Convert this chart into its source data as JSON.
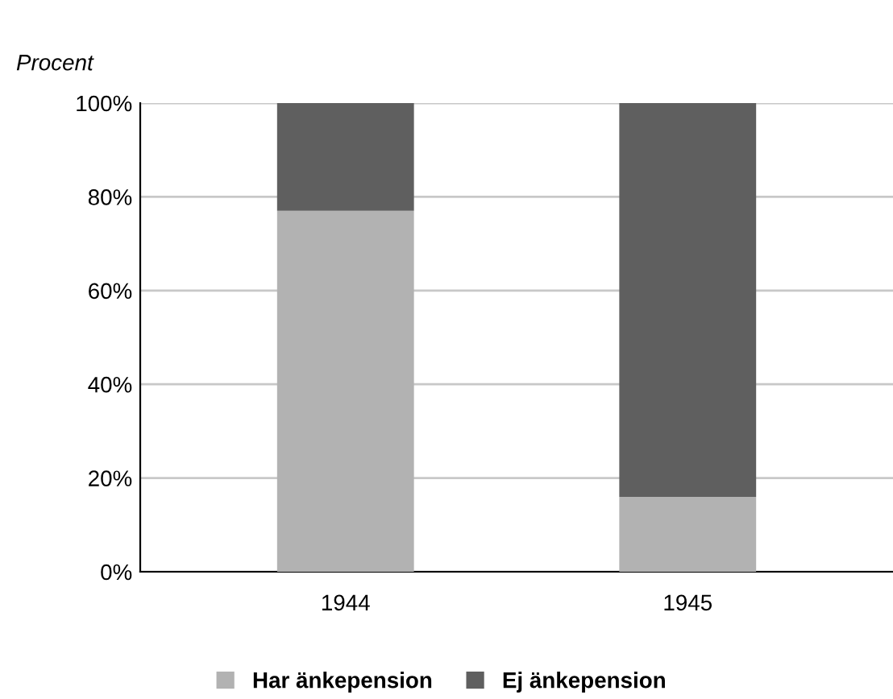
{
  "chart_data": {
    "type": "bar",
    "ylabel": "Procent",
    "categories": [
      "1944",
      "1945"
    ],
    "stacked": true,
    "series": [
      {
        "name": "Har änkepension",
        "color": "#b2b2b2",
        "values": [
          77,
          16
        ]
      },
      {
        "name": "Ej änkepension",
        "color": "#5f5f5f",
        "values": [
          23,
          84
        ]
      }
    ],
    "ylim": [
      0,
      100
    ],
    "yticks": [
      {
        "value": 0,
        "label": "0%"
      },
      {
        "value": 20,
        "label": "20%"
      },
      {
        "value": 40,
        "label": "40%"
      },
      {
        "value": 60,
        "label": "60%"
      },
      {
        "value": 80,
        "label": "80%"
      },
      {
        "value": 100,
        "label": "100%"
      }
    ],
    "grid": "y",
    "legend": "bottom"
  }
}
